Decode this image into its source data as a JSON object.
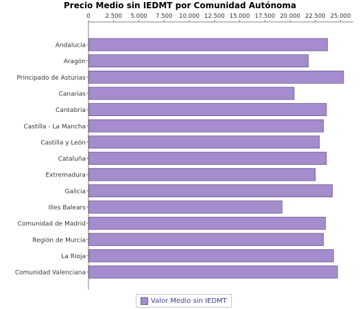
{
  "chart_data": {
    "type": "bar",
    "orientation": "horizontal",
    "title": "Precio Medio sin IEDMT por Comunidad Autónoma",
    "categories": [
      "Andalucía",
      "Aragón",
      "Principado de Asturias",
      "Canarias",
      "Cantabria",
      "Castilla - La Mancha",
      "Castilla y León",
      "Cataluña",
      "Extremadura",
      "Galicia",
      "Illes Balears",
      "Comunidad de Madrid",
      "Región de Murcia",
      "La Rioja",
      "Comunidad Valenciana"
    ],
    "series": [
      {
        "name": "Valor Medio sin IEDMT",
        "values": [
          23700,
          21800,
          25300,
          20400,
          23600,
          23300,
          22900,
          23600,
          22500,
          24200,
          19200,
          23500,
          23300,
          24300,
          24700
        ]
      }
    ],
    "xlim": [
      0,
      26250
    ],
    "ticks": [
      "0",
      "2.500",
      "5.000",
      "7.500",
      "10.000",
      "12.500",
      "15.000",
      "17.500",
      "20.000",
      "22.500",
      "25.000"
    ],
    "tick_values": [
      0,
      2500,
      5000,
      7500,
      10000,
      12500,
      15000,
      17500,
      20000,
      22500,
      25000
    ],
    "axis_position": "top",
    "grid": false,
    "legend_position": "bottom-center",
    "colors": {
      "bar_fill": "#a58ccd",
      "bar_stroke": "#5a4a78",
      "axis": "#808080",
      "legend_text": "#3c3c8c"
    }
  }
}
